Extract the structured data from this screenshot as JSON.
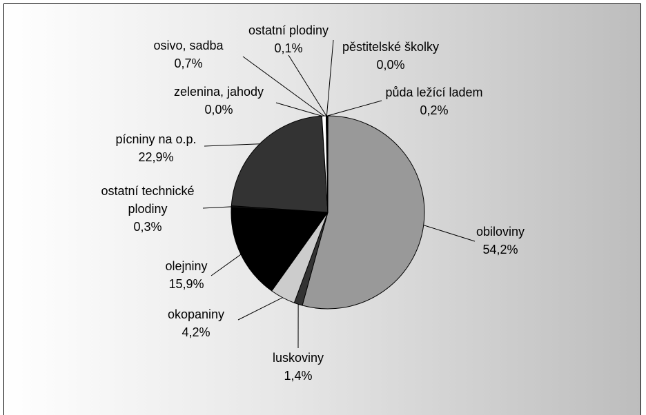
{
  "chart_data": {
    "type": "pie",
    "slices": [
      {
        "label": "obiloviny",
        "value_text": "54,2%",
        "value": 54.2,
        "color": "#999999"
      },
      {
        "label": "luskoviny",
        "value_text": "1,4%",
        "value": 1.4,
        "color": "#333333"
      },
      {
        "label": "okopaniny",
        "value_text": "4,2%",
        "value": 4.2,
        "color": "#cccccc"
      },
      {
        "label": "olejniny",
        "value_text": "15,9%",
        "value": 15.9,
        "color": "#000000"
      },
      {
        "label": "ostatní technické plodiny",
        "value_text": "0,3%",
        "value": 0.3,
        "color": "#111111"
      },
      {
        "label": "pícniny na o.p.",
        "value_text": "22,9%",
        "value": 22.9,
        "color": "#333333"
      },
      {
        "label": "zelenina, jahody",
        "value_text": "0,0%",
        "value": 0.0,
        "color": "#ffffff"
      },
      {
        "label": "osivo, sadba",
        "value_text": "0,7%",
        "value": 0.7,
        "color": "#ffffff"
      },
      {
        "label": "ostatní plodiny",
        "value_text": "0,1%",
        "value": 0.1,
        "color": "#cccccc"
      },
      {
        "label": "pěstitelské školky",
        "value_text": "0,0%",
        "value": 0.0,
        "color": "#ffffff"
      },
      {
        "label": "půda ležící ladem",
        "value_text": "0,2%",
        "value": 0.2,
        "color": "#000000"
      }
    ]
  }
}
